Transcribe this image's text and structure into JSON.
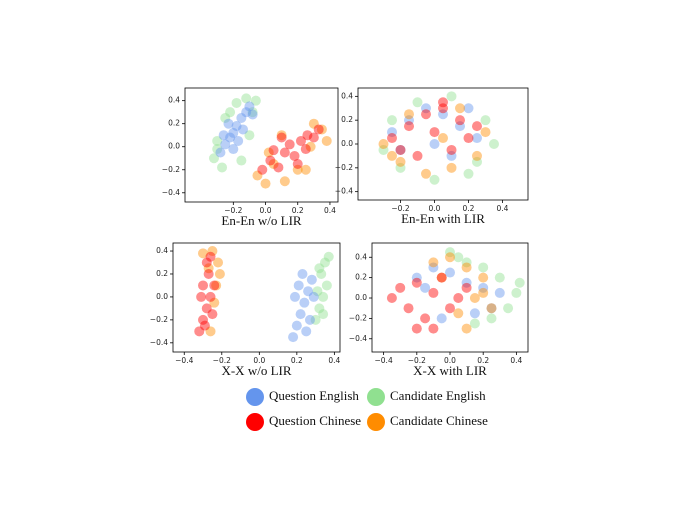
{
  "legend": [
    {
      "name": "Question English",
      "color": "#6495ed"
    },
    {
      "name": "Candidate English",
      "color": "#90e090"
    },
    {
      "name": "Question Chinese",
      "color": "#ff0000"
    },
    {
      "name": "Candidate Chinese",
      "color": "#ff8c00"
    }
  ],
  "chart_data": [
    {
      "type": "scatter",
      "xlabel": "En-En w/o LIR",
      "xlim": [
        -0.5,
        0.45
      ],
      "ylim": [
        -0.48,
        0.51
      ],
      "xticks": [
        {
          "value": -0.2,
          "label": "−0.2"
        },
        {
          "value": 0,
          "label": "0.0"
        },
        0.2,
        0.4
      ],
      "yticks": [
        {
          "value": -0.4,
          "label": "−0.4"
        },
        {
          "value": -0.2,
          "label": "−0.2"
        },
        {
          "value": 0,
          "label": "0.0"
        },
        0.2,
        0.4
      ],
      "series": [
        {
          "x": [
            -0.28,
            -0.25,
            -0.22,
            -0.2,
            -0.18,
            -0.15,
            -0.12,
            -0.1,
            -0.26,
            -0.2,
            -0.14,
            -0.08,
            -0.23,
            -0.17
          ],
          "y": [
            -0.05,
            0.02,
            0.08,
            0.12,
            0.18,
            0.25,
            0.3,
            0.35,
            0.1,
            -0.02,
            0.15,
            0.28,
            0.2,
            0.05
          ]
        },
        {
          "x": [
            -0.32,
            -0.3,
            -0.27,
            -0.22,
            -0.18,
            -0.12,
            -0.08,
            -0.06,
            -0.25,
            -0.15,
            -0.3,
            -0.1
          ],
          "y": [
            -0.1,
            0.05,
            -0.18,
            0.3,
            0.38,
            0.42,
            0.3,
            0.4,
            0.25,
            -0.12,
            -0.02,
            0.1
          ]
        },
        {
          "x": [
            -0.02,
            0.03,
            0.08,
            0.12,
            0.15,
            0.18,
            0.22,
            0.26,
            0.3,
            0.33,
            0.05,
            0.2,
            0.1,
            0.25
          ],
          "y": [
            -0.2,
            -0.12,
            -0.18,
            -0.05,
            0.02,
            -0.08,
            0.05,
            0.1,
            0.08,
            0.15,
            -0.03,
            -0.15,
            0.08,
            -0.02
          ]
        },
        {
          "x": [
            -0.05,
            0.0,
            0.05,
            0.12,
            0.2,
            0.28,
            0.35,
            0.38,
            0.1,
            0.25,
            0.02,
            0.3
          ],
          "y": [
            -0.25,
            -0.32,
            -0.15,
            -0.3,
            -0.2,
            0.0,
            0.15,
            0.05,
            0.1,
            -0.2,
            -0.05,
            0.2
          ]
        }
      ]
    },
    {
      "type": "scatter",
      "xlabel": "En-En with LIR",
      "xlim": [
        -0.45,
        0.55
      ],
      "ylim": [
        -0.47,
        0.47
      ],
      "xticks": [
        {
          "value": -0.2,
          "label": "−0.2"
        },
        {
          "value": 0,
          "label": "0.0"
        },
        0.2,
        0.4
      ],
      "yticks": [
        {
          "value": -0.4,
          "label": "−0.4"
        },
        {
          "value": -0.2,
          "label": "−0.2"
        },
        {
          "value": 0,
          "label": "0.0"
        },
        0.2,
        0.4
      ],
      "series": [
        {
          "x": [
            -0.25,
            -0.15,
            -0.05,
            0.05,
            0.15,
            0.25,
            -0.2,
            0.1,
            0.0,
            0.2
          ],
          "y": [
            0.1,
            0.2,
            0.3,
            0.25,
            0.15,
            0.05,
            -0.05,
            -0.1,
            0.0,
            0.3
          ]
        },
        {
          "x": [
            -0.3,
            -0.2,
            0.0,
            0.2,
            0.35,
            0.3,
            -0.1,
            0.1,
            0.25,
            -0.25
          ],
          "y": [
            -0.05,
            -0.2,
            -0.3,
            -0.25,
            0.0,
            0.2,
            0.35,
            0.4,
            -0.15,
            0.2
          ]
        },
        {
          "x": [
            -0.25,
            -0.15,
            -0.05,
            0.05,
            0.15,
            0.2,
            -0.2,
            -0.1,
            0.0,
            0.1,
            0.25,
            0.05
          ],
          "y": [
            0.05,
            0.15,
            0.25,
            0.3,
            0.2,
            0.05,
            -0.05,
            -0.1,
            0.1,
            -0.05,
            0.15,
            0.35
          ]
        },
        {
          "x": [
            -0.3,
            -0.2,
            -0.05,
            0.1,
            0.25,
            0.3,
            -0.15,
            0.15,
            0.05,
            -0.25
          ],
          "y": [
            0.0,
            -0.15,
            -0.25,
            -0.2,
            -0.1,
            0.1,
            0.25,
            0.3,
            0.05,
            -0.1
          ]
        }
      ]
    },
    {
      "type": "scatter",
      "xlabel": "X-X w/o LIR",
      "xlim": [
        -0.46,
        0.43
      ],
      "ylim": [
        -0.48,
        0.47
      ],
      "xticks": [
        {
          "value": -0.4,
          "label": "−0.4"
        },
        {
          "value": -0.2,
          "label": "−0.2"
        },
        {
          "value": 0,
          "label": "0.0"
        },
        0.2,
        0.4
      ],
      "yticks": [
        {
          "value": -0.4,
          "label": "−0.4"
        },
        {
          "value": -0.2,
          "label": "−0.2"
        },
        {
          "value": 0,
          "label": "0.0"
        },
        0.2,
        0.4
      ],
      "series": [
        {
          "x": [
            0.18,
            0.2,
            0.22,
            0.24,
            0.26,
            0.28,
            0.21,
            0.25,
            0.19,
            0.27,
            0.23,
            0.29
          ],
          "y": [
            -0.35,
            -0.25,
            -0.15,
            -0.05,
            0.05,
            0.15,
            0.1,
            -0.3,
            0.0,
            -0.2,
            0.2,
            0.0
          ]
        },
        {
          "x": [
            0.3,
            0.32,
            0.34,
            0.36,
            0.33,
            0.35,
            0.31,
            0.37,
            0.34,
            0.32
          ],
          "y": [
            -0.2,
            -0.1,
            0.0,
            0.1,
            0.2,
            0.3,
            0.05,
            0.35,
            -0.15,
            0.25
          ]
        },
        {
          "x": [
            -0.32,
            -0.3,
            -0.28,
            -0.26,
            -0.3,
            -0.27,
            -0.24,
            -0.29,
            -0.31,
            -0.25,
            -0.28,
            -0.26
          ],
          "y": [
            -0.3,
            -0.2,
            -0.1,
            0.0,
            0.1,
            0.2,
            0.1,
            -0.25,
            0.0,
            -0.15,
            0.3,
            0.35
          ]
        },
        {
          "x": [
            -0.3,
            -0.25,
            -0.22,
            -0.23,
            -0.27,
            -0.24,
            -0.21,
            -0.26
          ],
          "y": [
            0.38,
            0.4,
            0.3,
            0.1,
            0.25,
            -0.05,
            0.2,
            -0.3
          ]
        }
      ]
    },
    {
      "type": "scatter",
      "xlabel": "X-X with LIR",
      "xlim": [
        -0.47,
        0.47
      ],
      "ylim": [
        -0.53,
        0.54
      ],
      "xticks": [
        {
          "value": -0.4,
          "label": "−0.4"
        },
        {
          "value": -0.2,
          "label": "−0.2"
        },
        {
          "value": 0,
          "label": "0.0"
        },
        0.2,
        0.4
      ],
      "yticks": [
        {
          "value": -0.4,
          "label": "−0.4"
        },
        {
          "value": -0.2,
          "label": "−0.2"
        },
        {
          "value": 0,
          "label": "0.0"
        },
        0.2,
        0.4
      ],
      "series": [
        {
          "x": [
            -0.2,
            -0.1,
            0.0,
            0.1,
            0.2,
            0.3,
            -0.05,
            0.15,
            0.25,
            -0.15
          ],
          "y": [
            0.2,
            0.3,
            0.25,
            0.15,
            0.1,
            0.05,
            -0.2,
            -0.15,
            -0.1,
            0.1
          ]
        },
        {
          "x": [
            0.0,
            0.1,
            0.2,
            0.3,
            0.4,
            0.35,
            0.25,
            0.15,
            0.42,
            0.05
          ],
          "y": [
            0.45,
            0.35,
            0.3,
            0.2,
            0.05,
            -0.1,
            -0.2,
            -0.25,
            0.15,
            0.4
          ]
        },
        {
          "x": [
            -0.35,
            -0.3,
            -0.25,
            -0.2,
            -0.15,
            -0.1,
            -0.05,
            0.0,
            0.05,
            0.1,
            -0.2,
            -0.1
          ],
          "y": [
            0.0,
            0.1,
            -0.1,
            0.15,
            -0.2,
            0.05,
            0.2,
            -0.1,
            0.0,
            0.1,
            -0.3,
            -0.3
          ]
        },
        {
          "x": [
            -0.1,
            0.0,
            0.1,
            0.2,
            0.15,
            0.05,
            0.25,
            -0.05,
            0.1,
            0.2
          ],
          "y": [
            0.35,
            0.4,
            0.3,
            0.2,
            0.0,
            -0.15,
            -0.1,
            0.2,
            -0.3,
            0.05
          ]
        }
      ]
    }
  ]
}
